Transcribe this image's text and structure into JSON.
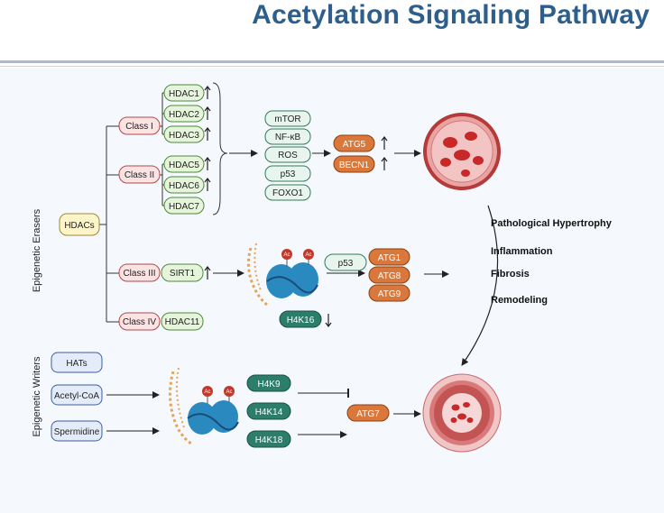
{
  "title": "Acetylation Signaling Pathway",
  "labels": {
    "erasers": "Epigenetic Erasers",
    "writers": "Epigenetic Writers"
  },
  "hdacs": "HDACs",
  "classes": [
    "Class I",
    "Class II",
    "Class III",
    "Class IV"
  ],
  "hdac_list": [
    "HDAC1",
    "HDAC2",
    "HDAC3",
    "HDAC5",
    "HDAC6",
    "HDAC7"
  ],
  "sirt1": "SIRT1",
  "hdac11": "HDAC11",
  "targets": [
    "mTOR",
    "NF-κB",
    "ROS",
    "p53",
    "FOXO1"
  ],
  "atg_top": [
    "ATG5",
    "BECN1"
  ],
  "p53_mid": "p53",
  "atg_mid": [
    "ATG1",
    "ATG8",
    "ATG9"
  ],
  "h4k16": "H4K16",
  "ac_label": "Ac",
  "outcomes": [
    "Pathological Hypertrophy",
    "Inflammation",
    "Fibrosis",
    "Remodeling"
  ],
  "writers": [
    "HATs",
    "Acetyl-CoA",
    "Spermidine"
  ],
  "histones": [
    "H4K9",
    "H4K14",
    "H4K18"
  ],
  "atg7": "ATG7",
  "colors": {
    "title": "#2e5f8c",
    "class_fill": "#fbe3e3",
    "hdac_fill": "#e6f4dc",
    "atg_fill": "#d9783a",
    "histone_fill": "#2c7d6a",
    "writer_fill": "#e4ecfa"
  }
}
